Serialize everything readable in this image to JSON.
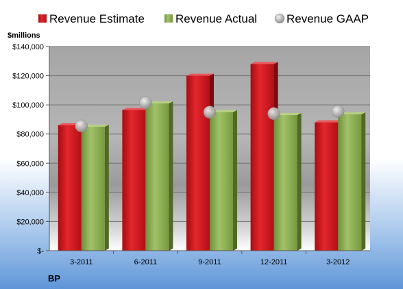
{
  "chart_data": {
    "type": "bar",
    "title": "BP",
    "ylabel": "$millions",
    "xlabel": "",
    "categories": [
      "3-2011",
      "6-2011",
      "9-2011",
      "12-2011",
      "3-2012"
    ],
    "series": [
      {
        "name": "Revenue Estimate",
        "type": "bar",
        "values": [
          86000,
          96500,
          120000,
          128000,
          88000
        ],
        "color": "#c8161e"
      },
      {
        "name": "Revenue Actual",
        "type": "bar",
        "values": [
          85000,
          101000,
          95000,
          93000,
          93500
        ],
        "color": "#8aab52"
      },
      {
        "name": "Revenue GAAP",
        "type": "marker",
        "values": [
          85500,
          101500,
          95000,
          94000,
          95500
        ],
        "color": "#a8a8a8"
      }
    ],
    "ylim": [
      0,
      140000
    ],
    "yticks": [
      0,
      20000,
      40000,
      60000,
      80000,
      100000,
      120000,
      140000
    ],
    "ytick_labels": [
      "$-",
      "$20,000",
      "$40,000",
      "$60,000",
      "$80,000",
      "$100,000",
      "$120,000",
      "$140,000"
    ],
    "grid": true,
    "legend": "top"
  }
}
